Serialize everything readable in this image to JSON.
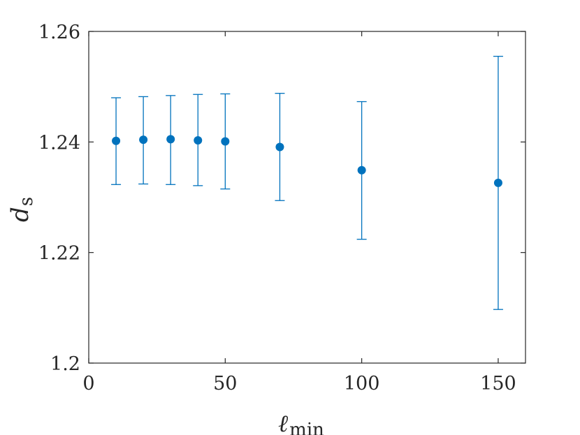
{
  "chart_data": {
    "type": "scatter",
    "error_bars": true,
    "xlabel": {
      "symbol": "ℓ",
      "subscript": "min"
    },
    "ylabel": {
      "symbol": "d",
      "subscript": "s"
    },
    "xlim": [
      0,
      160
    ],
    "ylim": [
      1.2,
      1.26
    ],
    "xticks": [
      0,
      50,
      100,
      150
    ],
    "xtick_labels": [
      "0",
      "50",
      "100",
      "150"
    ],
    "yticks": [
      1.2,
      1.22,
      1.24,
      1.26
    ],
    "ytick_labels": [
      "1.2",
      "1.22",
      "1.24",
      "1.26"
    ],
    "grid": false,
    "marker_color": "#0072BD",
    "axis_color": "#262626",
    "series": [
      {
        "x": [
          10,
          20,
          30,
          40,
          50,
          70,
          100,
          150
        ],
        "y": [
          1.2402,
          1.2404,
          1.2405,
          1.2403,
          1.2401,
          1.2391,
          1.2349,
          1.2326
        ],
        "err_low": [
          1.2323,
          1.2324,
          1.2323,
          1.2321,
          1.2315,
          1.2294,
          1.2224,
          1.2097
        ],
        "err_high": [
          1.248,
          1.2482,
          1.2484,
          1.2486,
          1.2487,
          1.2488,
          1.2473,
          1.2555
        ]
      }
    ]
  }
}
